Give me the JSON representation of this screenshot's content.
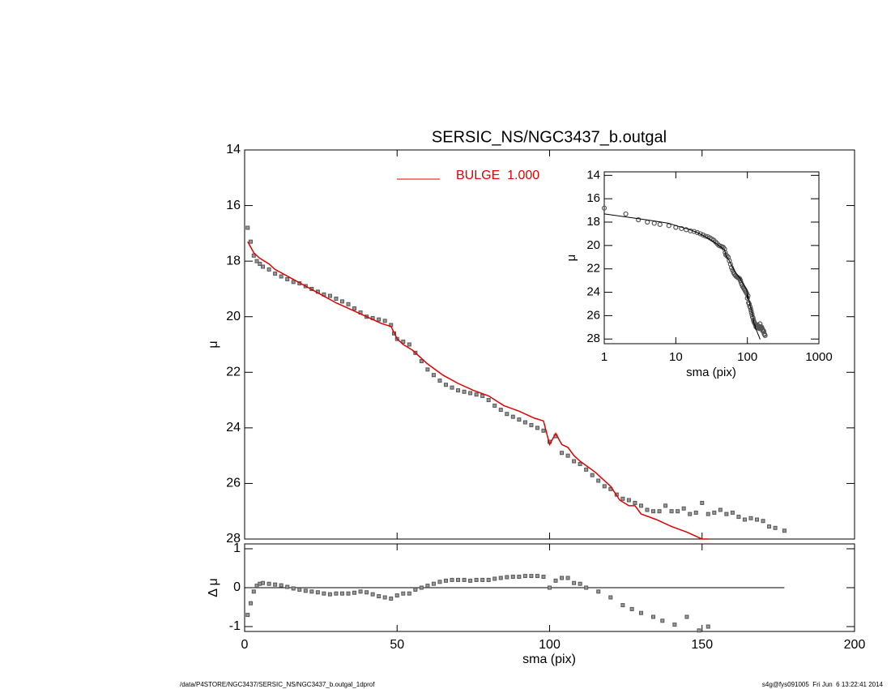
{
  "chart_data": [
    {
      "type": "scatter",
      "title": "SERSIC_NS/NGC3437_b.outgal",
      "ylabel": "μ",
      "xlim": [
        0,
        200
      ],
      "xticks": [
        0,
        50,
        100,
        150,
        200
      ],
      "ylim": [
        28,
        14
      ],
      "yticks": [
        14,
        16,
        18,
        20,
        22,
        24,
        26,
        28
      ],
      "marker_color": "#555555",
      "x": [
        1,
        2,
        3,
        4,
        5,
        6,
        8,
        10,
        12,
        14,
        16,
        18,
        20,
        22,
        24,
        26,
        28,
        30,
        32,
        34,
        36,
        38,
        40,
        42,
        44,
        46,
        48,
        49,
        50,
        52,
        54,
        56,
        58,
        60,
        62,
        64,
        66,
        68,
        70,
        72,
        74,
        76,
        78,
        80,
        82,
        84,
        86,
        88,
        90,
        92,
        94,
        96,
        98,
        100,
        102,
        104,
        106,
        108,
        110,
        112,
        114,
        116,
        118,
        120,
        122,
        124,
        126,
        128,
        130,
        132,
        134,
        136,
        138,
        140,
        142,
        144,
        146,
        148,
        150,
        152,
        154,
        156,
        158,
        160,
        162,
        164,
        166,
        168,
        170,
        172,
        174,
        177
      ],
      "values": [
        16.8,
        17.3,
        17.8,
        18.0,
        18.1,
        18.2,
        18.3,
        18.45,
        18.55,
        18.65,
        18.75,
        18.8,
        18.9,
        19.0,
        19.1,
        19.2,
        19.25,
        19.35,
        19.45,
        19.55,
        19.7,
        19.85,
        20.0,
        20.05,
        20.1,
        20.15,
        20.3,
        20.6,
        20.8,
        20.9,
        21.0,
        21.3,
        21.6,
        21.9,
        22.1,
        22.3,
        22.45,
        22.55,
        22.65,
        22.7,
        22.75,
        22.8,
        22.85,
        23.0,
        23.2,
        23.35,
        23.5,
        23.6,
        23.7,
        23.8,
        23.9,
        24.0,
        24.1,
        24.5,
        24.3,
        24.9,
        25.0,
        25.2,
        25.3,
        25.5,
        25.7,
        25.9,
        26.1,
        26.2,
        26.4,
        26.55,
        26.6,
        26.7,
        26.8,
        26.95,
        27.0,
        27.0,
        26.8,
        27.0,
        27.0,
        26.9,
        27.1,
        27.05,
        26.7,
        27.1,
        27.05,
        26.95,
        27.1,
        27.05,
        27.2,
        27.3,
        27.25,
        27.3,
        27.35,
        27.55,
        27.6,
        27.7
      ],
      "model": {
        "name": "BULGE  1.000",
        "color": "#e00000",
        "x": [
          1,
          3,
          5,
          8,
          10,
          15,
          20,
          25,
          30,
          35,
          40,
          45,
          48,
          50,
          52,
          55,
          60,
          65,
          70,
          75,
          80,
          85,
          90,
          95,
          98,
          100,
          102,
          104,
          106,
          108,
          110,
          115,
          120,
          123,
          126,
          128,
          130,
          135,
          140,
          145,
          148,
          150,
          152
        ],
        "values": [
          17.3,
          17.7,
          17.9,
          18.1,
          18.3,
          18.6,
          18.9,
          19.2,
          19.5,
          19.75,
          20.0,
          20.25,
          20.35,
          20.8,
          21.0,
          21.2,
          21.7,
          22.1,
          22.4,
          22.65,
          22.85,
          23.2,
          23.4,
          23.65,
          23.75,
          24.6,
          24.2,
          24.6,
          24.7,
          25.0,
          25.2,
          25.6,
          26.1,
          26.6,
          26.8,
          26.8,
          27.1,
          27.3,
          27.55,
          27.75,
          27.9,
          28.0,
          28.0
        ]
      }
    },
    {
      "type": "scatter",
      "xlabel": "sma (pix)",
      "ylabel": "Δ μ",
      "xlim": [
        0,
        200
      ],
      "xticks": [
        0,
        50,
        100,
        150,
        200
      ],
      "ylim": [
        -1.125,
        1.125
      ],
      "yticks": [
        -1,
        0,
        1
      ],
      "marker_color": "#555555",
      "x": [
        1,
        2,
        3,
        4,
        5,
        6,
        8,
        10,
        12,
        14,
        16,
        18,
        20,
        22,
        24,
        26,
        28,
        30,
        32,
        34,
        36,
        38,
        40,
        42,
        44,
        46,
        48,
        50,
        52,
        54,
        56,
        58,
        60,
        62,
        64,
        66,
        68,
        70,
        72,
        74,
        76,
        78,
        80,
        82,
        84,
        86,
        88,
        90,
        92,
        94,
        96,
        98,
        100,
        102,
        104,
        106,
        108,
        110,
        112,
        116,
        120,
        124,
        127,
        130,
        134,
        137,
        141,
        145,
        149,
        152
      ],
      "values": [
        -0.7,
        -0.4,
        -0.1,
        0.05,
        0.1,
        0.12,
        0.1,
        0.08,
        0.06,
        0.02,
        -0.02,
        -0.05,
        -0.08,
        -0.1,
        -0.12,
        -0.15,
        -0.17,
        -0.15,
        -0.15,
        -0.15,
        -0.13,
        -0.1,
        -0.12,
        -0.17,
        -0.22,
        -0.25,
        -0.28,
        -0.2,
        -0.15,
        -0.15,
        -0.05,
        0.0,
        0.05,
        0.1,
        0.15,
        0.18,
        0.2,
        0.2,
        0.2,
        0.18,
        0.2,
        0.2,
        0.2,
        0.23,
        0.25,
        0.27,
        0.28,
        0.28,
        0.3,
        0.3,
        0.3,
        0.28,
        0.0,
        0.18,
        0.25,
        0.25,
        0.12,
        0.1,
        0.0,
        -0.1,
        -0.25,
        -0.45,
        -0.55,
        -0.65,
        -0.75,
        -0.85,
        -0.95,
        -0.75,
        -1.1,
        -1.0
      ],
      "reference": {
        "x": [
          0,
          177
        ],
        "values": [
          0,
          0
        ]
      }
    },
    {
      "type": "scatter",
      "xlabel": "sma (pix)",
      "ylabel": "μ",
      "xscale": "log",
      "xlim": [
        1,
        1000
      ],
      "xticks": [
        1,
        10,
        100,
        1000
      ],
      "ylim": [
        28.4,
        13.7
      ],
      "yticks": [
        14,
        16,
        18,
        20,
        22,
        24,
        26,
        28
      ]
    }
  ],
  "footer": {
    "left": "/data/P4STORE/NGC3437/SERSIC_NS/NGC3437_b.outgal_1dprof",
    "right": "s4g@fys091005  Fri Jun  6 13:22:41 2014"
  }
}
